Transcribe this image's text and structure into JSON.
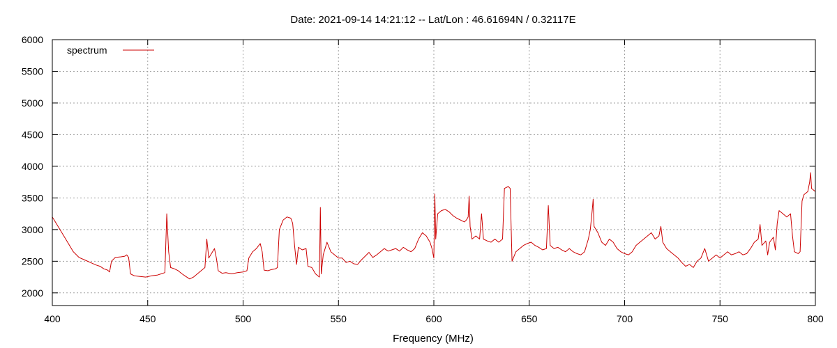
{
  "chart_data": {
    "type": "line",
    "title": "Date: 2021-09-14 14:21:12  --  Lat/Lon : 46.61694N / 0.32117E",
    "xlabel": "Frequency (MHz)",
    "ylabel": "",
    "xlim": [
      400,
      800
    ],
    "ylim": [
      1800,
      6000
    ],
    "xticks": [
      400,
      450,
      500,
      550,
      600,
      650,
      700,
      750,
      800
    ],
    "yticks": [
      2000,
      2500,
      3000,
      3500,
      4000,
      4500,
      5000,
      5500,
      6000
    ],
    "grid": true,
    "legend_position": "top-left",
    "series": [
      {
        "name": "spectrum",
        "color": "#cc0000",
        "points": [
          [
            400,
            3200
          ],
          [
            402,
            3100
          ],
          [
            405,
            2950
          ],
          [
            408,
            2800
          ],
          [
            411,
            2650
          ],
          [
            414,
            2560
          ],
          [
            417,
            2520
          ],
          [
            420,
            2480
          ],
          [
            423,
            2440
          ],
          [
            425,
            2420
          ],
          [
            427,
            2380
          ],
          [
            429,
            2360
          ],
          [
            430,
            2330
          ],
          [
            431,
            2500
          ],
          [
            433,
            2560
          ],
          [
            436,
            2570
          ],
          [
            438,
            2580
          ],
          [
            439,
            2600
          ],
          [
            440,
            2560
          ],
          [
            441,
            2300
          ],
          [
            443,
            2270
          ],
          [
            446,
            2260
          ],
          [
            449,
            2250
          ],
          [
            452,
            2270
          ],
          [
            455,
            2280
          ],
          [
            457,
            2300
          ],
          [
            459,
            2320
          ],
          [
            460,
            3250
          ],
          [
            461,
            2650
          ],
          [
            462,
            2400
          ],
          [
            464,
            2380
          ],
          [
            466,
            2350
          ],
          [
            468,
            2300
          ],
          [
            470,
            2260
          ],
          [
            472,
            2220
          ],
          [
            474,
            2250
          ],
          [
            476,
            2300
          ],
          [
            478,
            2350
          ],
          [
            480,
            2400
          ],
          [
            481,
            2850
          ],
          [
            482,
            2550
          ],
          [
            484,
            2650
          ],
          [
            485,
            2700
          ],
          [
            486,
            2550
          ],
          [
            487,
            2350
          ],
          [
            489,
            2310
          ],
          [
            491,
            2320
          ],
          [
            494,
            2300
          ],
          [
            497,
            2320
          ],
          [
            500,
            2330
          ],
          [
            502,
            2350
          ],
          [
            503,
            2550
          ],
          [
            505,
            2650
          ],
          [
            507,
            2700
          ],
          [
            509,
            2780
          ],
          [
            510,
            2650
          ],
          [
            511,
            2360
          ],
          [
            513,
            2350
          ],
          [
            515,
            2370
          ],
          [
            517,
            2380
          ],
          [
            518,
            2400
          ],
          [
            519,
            3000
          ],
          [
            521,
            3150
          ],
          [
            523,
            3200
          ],
          [
            525,
            3180
          ],
          [
            526,
            3100
          ],
          [
            527,
            2750
          ],
          [
            528,
            2450
          ],
          [
            529,
            2720
          ],
          [
            531,
            2680
          ],
          [
            533,
            2700
          ],
          [
            534,
            2420
          ],
          [
            536,
            2400
          ],
          [
            538,
            2300
          ],
          [
            540,
            2250
          ],
          [
            540.5,
            3350
          ],
          [
            541,
            2300
          ],
          [
            542,
            2600
          ],
          [
            544,
            2800
          ],
          [
            546,
            2650
          ],
          [
            548,
            2600
          ],
          [
            550,
            2550
          ],
          [
            552,
            2550
          ],
          [
            554,
            2480
          ],
          [
            556,
            2500
          ],
          [
            558,
            2460
          ],
          [
            560,
            2450
          ],
          [
            562,
            2520
          ],
          [
            564,
            2580
          ],
          [
            566,
            2640
          ],
          [
            568,
            2560
          ],
          [
            570,
            2600
          ],
          [
            572,
            2650
          ],
          [
            574,
            2700
          ],
          [
            576,
            2660
          ],
          [
            578,
            2680
          ],
          [
            580,
            2700
          ],
          [
            582,
            2660
          ],
          [
            584,
            2720
          ],
          [
            586,
            2680
          ],
          [
            588,
            2650
          ],
          [
            590,
            2700
          ],
          [
            592,
            2850
          ],
          [
            594,
            2950
          ],
          [
            596,
            2900
          ],
          [
            598,
            2800
          ],
          [
            599,
            2700
          ],
          [
            600,
            2550
          ],
          [
            600.5,
            3560
          ],
          [
            601,
            2850
          ],
          [
            602,
            3250
          ],
          [
            604,
            3300
          ],
          [
            606,
            3320
          ],
          [
            608,
            3280
          ],
          [
            610,
            3220
          ],
          [
            612,
            3180
          ],
          [
            614,
            3150
          ],
          [
            616,
            3120
          ],
          [
            617,
            3150
          ],
          [
            618,
            3200
          ],
          [
            618.5,
            3530
          ],
          [
            619,
            3050
          ],
          [
            620,
            2850
          ],
          [
            622,
            2900
          ],
          [
            624,
            2850
          ],
          [
            625,
            3250
          ],
          [
            626,
            2850
          ],
          [
            628,
            2820
          ],
          [
            630,
            2800
          ],
          [
            632,
            2850
          ],
          [
            634,
            2800
          ],
          [
            636,
            2850
          ],
          [
            637,
            3650
          ],
          [
            639,
            3680
          ],
          [
            640,
            3650
          ],
          [
            641,
            2500
          ],
          [
            643,
            2650
          ],
          [
            645,
            2700
          ],
          [
            647,
            2750
          ],
          [
            649,
            2780
          ],
          [
            651,
            2800
          ],
          [
            653,
            2750
          ],
          [
            655,
            2720
          ],
          [
            657,
            2680
          ],
          [
            659,
            2700
          ],
          [
            660,
            3380
          ],
          [
            661,
            2750
          ],
          [
            663,
            2700
          ],
          [
            665,
            2720
          ],
          [
            667,
            2680
          ],
          [
            669,
            2650
          ],
          [
            671,
            2700
          ],
          [
            673,
            2650
          ],
          [
            675,
            2620
          ],
          [
            677,
            2600
          ],
          [
            679,
            2650
          ],
          [
            681,
            2850
          ],
          [
            682,
            3000
          ],
          [
            683,
            3300
          ],
          [
            683.5,
            3480
          ],
          [
            684,
            3050
          ],
          [
            686,
            2950
          ],
          [
            688,
            2800
          ],
          [
            690,
            2750
          ],
          [
            692,
            2850
          ],
          [
            694,
            2800
          ],
          [
            696,
            2700
          ],
          [
            698,
            2650
          ],
          [
            700,
            2620
          ],
          [
            702,
            2600
          ],
          [
            704,
            2650
          ],
          [
            706,
            2750
          ],
          [
            708,
            2800
          ],
          [
            710,
            2850
          ],
          [
            712,
            2900
          ],
          [
            714,
            2950
          ],
          [
            716,
            2850
          ],
          [
            718,
            2900
          ],
          [
            719,
            3050
          ],
          [
            720,
            2800
          ],
          [
            722,
            2700
          ],
          [
            724,
            2650
          ],
          [
            726,
            2600
          ],
          [
            728,
            2550
          ],
          [
            730,
            2480
          ],
          [
            732,
            2420
          ],
          [
            734,
            2450
          ],
          [
            736,
            2400
          ],
          [
            738,
            2500
          ],
          [
            740,
            2550
          ],
          [
            742,
            2700
          ],
          [
            744,
            2500
          ],
          [
            746,
            2550
          ],
          [
            748,
            2600
          ],
          [
            750,
            2550
          ],
          [
            752,
            2600
          ],
          [
            754,
            2650
          ],
          [
            756,
            2600
          ],
          [
            758,
            2620
          ],
          [
            760,
            2650
          ],
          [
            762,
            2600
          ],
          [
            764,
            2620
          ],
          [
            766,
            2700
          ],
          [
            768,
            2800
          ],
          [
            770,
            2850
          ],
          [
            771,
            3080
          ],
          [
            772,
            2750
          ],
          [
            774,
            2820
          ],
          [
            775,
            2600
          ],
          [
            776,
            2800
          ],
          [
            778,
            2880
          ],
          [
            779,
            2680
          ],
          [
            780,
            3100
          ],
          [
            781,
            3300
          ],
          [
            783,
            3250
          ],
          [
            785,
            3200
          ],
          [
            787,
            3250
          ],
          [
            788,
            2900
          ],
          [
            789,
            2650
          ],
          [
            791,
            2620
          ],
          [
            792,
            2650
          ],
          [
            793,
            3450
          ],
          [
            794,
            3550
          ],
          [
            796,
            3600
          ],
          [
            797,
            3750
          ],
          [
            797.5,
            3900
          ],
          [
            798,
            3650
          ],
          [
            800,
            3600
          ]
        ]
      }
    ]
  }
}
